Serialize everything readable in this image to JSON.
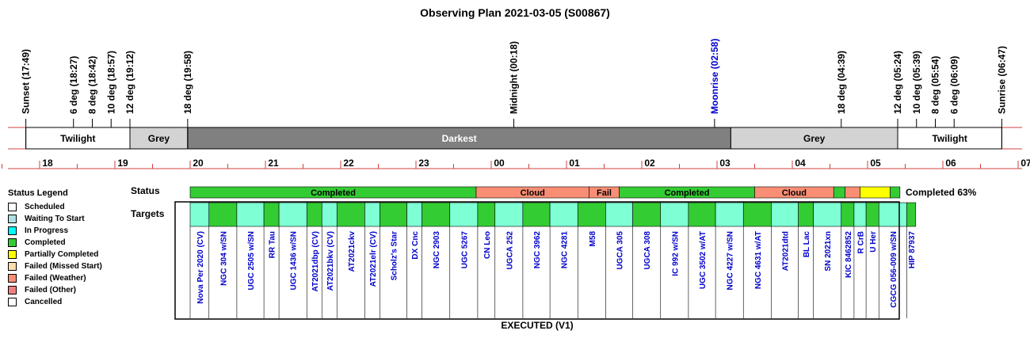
{
  "chart_data": {
    "type": "timeline",
    "title": "Observing Plan 2021-03-05 (S00867)",
    "events": [
      {
        "label": "Sunset (17:49)",
        "t": 17.817,
        "color": "#000000",
        "tick": "full"
      },
      {
        "label": "6 deg (18:27)",
        "t": 18.45,
        "color": "#000000",
        "tick": "short"
      },
      {
        "label": "8 deg (18:42)",
        "t": 18.7,
        "color": "#000000",
        "tick": "short"
      },
      {
        "label": "10 deg (18:57)",
        "t": 18.95,
        "color": "#000000",
        "tick": "short"
      },
      {
        "label": "12 deg (19:12)",
        "t": 19.2,
        "color": "#000000",
        "tick": "full"
      },
      {
        "label": "18 deg (19:58)",
        "t": 19.967,
        "color": "#000000",
        "tick": "full"
      },
      {
        "label": "Midnight (00:18)",
        "t": 24.3,
        "color": "#000000",
        "tick": "short"
      },
      {
        "label": "Moonrise (02:58)",
        "t": 26.967,
        "color": "#0000cc",
        "tick": "short"
      },
      {
        "label": "18 deg (04:39)",
        "t": 28.65,
        "color": "#000000",
        "tick": "short"
      },
      {
        "label": "12 deg (05:24)",
        "t": 29.4,
        "color": "#000000",
        "tick": "full"
      },
      {
        "label": "10 deg (05:39)",
        "t": 29.65,
        "color": "#000000",
        "tick": "short"
      },
      {
        "label": "8 deg (05:54)",
        "t": 29.9,
        "color": "#000000",
        "tick": "short"
      },
      {
        "label": "6 deg (06:09)",
        "t": 30.15,
        "color": "#000000",
        "tick": "short"
      },
      {
        "label": "Sunrise (06:47)",
        "t": 30.783,
        "color": "#000000",
        "tick": "full"
      }
    ],
    "periods": [
      {
        "label": "Twilight",
        "start": 17.817,
        "end": 19.2,
        "color": "#ffffff",
        "text_color": "#000000"
      },
      {
        "label": "Grey",
        "start": 19.2,
        "end": 19.967,
        "color": "#d3d3d3",
        "text_color": "#000000"
      },
      {
        "label": "Darkest",
        "start": 19.967,
        "end": 27.183,
        "color": "#808080",
        "text_color": "#ffffff"
      },
      {
        "label": "Grey",
        "start": 27.183,
        "end": 29.4,
        "color": "#d3d3d3",
        "text_color": "#000000"
      },
      {
        "label": "Twilight",
        "start": 29.4,
        "end": 30.783,
        "color": "#ffffff",
        "text_color": "#000000"
      }
    ],
    "hour_ticks": [
      "18",
      "19",
      "20",
      "21",
      "22",
      "23",
      "00",
      "01",
      "02",
      "03",
      "04",
      "05",
      "06",
      "07"
    ],
    "x_range": [
      17.5,
      31.0
    ],
    "status_label": "Status",
    "targets_label": "Targets",
    "status_segments": [
      {
        "label": "Completed",
        "start": 20.0,
        "end": 23.8,
        "color": "#33cc33"
      },
      {
        "label": "Cloud",
        "start": 23.8,
        "end": 25.3,
        "color": "#fa8e75"
      },
      {
        "label": "Fail",
        "start": 25.3,
        "end": 25.7,
        "color": "#fa8e75"
      },
      {
        "label": "Completed",
        "start": 25.7,
        "end": 27.5,
        "color": "#33cc33"
      },
      {
        "label": "Cloud",
        "start": 27.5,
        "end": 28.55,
        "color": "#fa8e75"
      },
      {
        "label": "",
        "start": 28.55,
        "end": 28.7,
        "color": "#33cc33"
      },
      {
        "label": "",
        "start": 28.7,
        "end": 28.9,
        "color": "#fa8e75"
      },
      {
        "label": "",
        "start": 28.9,
        "end": 29.3,
        "color": "#ffff00"
      },
      {
        "label": "",
        "start": 29.3,
        "end": 29.43,
        "color": "#33cc33"
      }
    ],
    "completion_text": "Completed 63%",
    "targets": [
      {
        "name": "Nova Per 2020 (CV)",
        "start": 20.0,
        "end": 20.25,
        "color": "#7fffd4"
      },
      {
        "name": "NGC 304 w/SN",
        "start": 20.25,
        "end": 20.62,
        "color": "#33cc33"
      },
      {
        "name": "UGC 2505 w/SN",
        "start": 20.62,
        "end": 20.98,
        "color": "#7fffd4"
      },
      {
        "name": "RR Tau",
        "start": 20.98,
        "end": 21.18,
        "color": "#33cc33"
      },
      {
        "name": "UGC 1436 w/SN",
        "start": 21.18,
        "end": 21.55,
        "color": "#7fffd4"
      },
      {
        "name": "AT2021dbp (CV)",
        "start": 21.55,
        "end": 21.75,
        "color": "#33cc33"
      },
      {
        "name": "AT2021bkv (CV)",
        "start": 21.75,
        "end": 21.95,
        "color": "#7fffd4"
      },
      {
        "name": "AT2021ckv",
        "start": 21.95,
        "end": 22.32,
        "color": "#33cc33"
      },
      {
        "name": "AT2021elr (CV)",
        "start": 22.32,
        "end": 22.52,
        "color": "#7fffd4"
      },
      {
        "name": "Scholz's Star",
        "start": 22.52,
        "end": 22.88,
        "color": "#33cc33"
      },
      {
        "name": "DX Cnc",
        "start": 22.88,
        "end": 23.08,
        "color": "#7fffd4"
      },
      {
        "name": "NGC 2903",
        "start": 23.08,
        "end": 23.45,
        "color": "#33cc33"
      },
      {
        "name": "UGC 5267",
        "start": 23.45,
        "end": 23.82,
        "color": "#7fffd4"
      },
      {
        "name": "CN Leo",
        "start": 23.82,
        "end": 24.05,
        "color": "#33cc33"
      },
      {
        "name": "UGCA 252",
        "start": 24.05,
        "end": 24.42,
        "color": "#7fffd4"
      },
      {
        "name": "NGC 3962",
        "start": 24.42,
        "end": 24.78,
        "color": "#33cc33"
      },
      {
        "name": "NGC 4281",
        "start": 24.78,
        "end": 25.15,
        "color": "#7fffd4"
      },
      {
        "name": "M58",
        "start": 25.15,
        "end": 25.52,
        "color": "#33cc33"
      },
      {
        "name": "UGCA 305",
        "start": 25.52,
        "end": 25.88,
        "color": "#7fffd4"
      },
      {
        "name": "UGCA 308",
        "start": 25.88,
        "end": 26.25,
        "color": "#33cc33"
      },
      {
        "name": "IC 992 w/SN",
        "start": 26.25,
        "end": 26.62,
        "color": "#7fffd4"
      },
      {
        "name": "UGC 3502 w/AT",
        "start": 26.62,
        "end": 26.98,
        "color": "#33cc33"
      },
      {
        "name": "NGC 4227 w/SN",
        "start": 26.98,
        "end": 27.35,
        "color": "#7fffd4"
      },
      {
        "name": "NGC 4631 w/AT",
        "start": 27.35,
        "end": 27.72,
        "color": "#33cc33"
      },
      {
        "name": "AT2021dtd",
        "start": 27.72,
        "end": 28.08,
        "color": "#7fffd4"
      },
      {
        "name": "BL Lac",
        "start": 28.08,
        "end": 28.28,
        "color": "#33cc33"
      },
      {
        "name": "SN 2021xn",
        "start": 28.28,
        "end": 28.65,
        "color": "#7fffd4"
      },
      {
        "name": "KIC 8462852",
        "start": 28.65,
        "end": 28.82,
        "color": "#33cc33"
      },
      {
        "name": "R CrB",
        "start": 28.82,
        "end": 28.98,
        "color": "#7fffd4"
      },
      {
        "name": "U Her",
        "start": 28.98,
        "end": 29.15,
        "color": "#33cc33"
      },
      {
        "name": "CGCG 056-009 w/SN",
        "start": 29.15,
        "end": 29.52,
        "color": "#7fffd4"
      },
      {
        "name": "HIP 87937",
        "start": 29.52,
        "end": 29.64,
        "color": "#33cc33"
      }
    ],
    "footer": "EXECUTED (V1)"
  },
  "legend": {
    "title": "Status Legend",
    "items": [
      {
        "label": "Scheduled",
        "color": "#ffffff"
      },
      {
        "label": "Waiting To Start",
        "color": "#b0e0e6"
      },
      {
        "label": "In Progress",
        "color": "#00ffff"
      },
      {
        "label": "Completed",
        "color": "#33cc33"
      },
      {
        "label": "Partially Completed",
        "color": "#ffff00"
      },
      {
        "label": "Failed (Missed Start)",
        "color": "#ffdead"
      },
      {
        "label": "Failed (Weather)",
        "color": "#fa8e75"
      },
      {
        "label": "Failed (Other)",
        "color": "#f08080"
      },
      {
        "label": "Cancelled",
        "color": "#ffffff"
      }
    ]
  }
}
